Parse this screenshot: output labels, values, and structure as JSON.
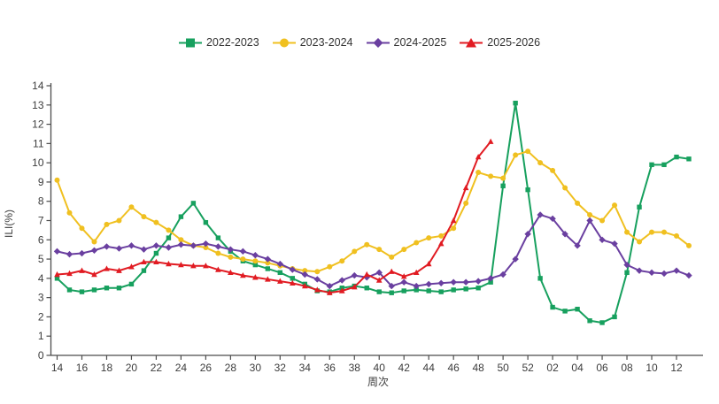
{
  "chart_data": {
    "type": "line",
    "title": "",
    "xlabel": "周次",
    "ylabel": "ILI(%)",
    "ylim": [
      0,
      14
    ],
    "grid": false,
    "legend_position": "top-center",
    "y_ticks": [
      0,
      1,
      2,
      3,
      4,
      5,
      6,
      7,
      8,
      9,
      10,
      11,
      12,
      13,
      14
    ],
    "x_tick_labels": [
      "14",
      "16",
      "18",
      "20",
      "22",
      "24",
      "26",
      "28",
      "30",
      "32",
      "34",
      "36",
      "38",
      "40",
      "42",
      "44",
      "46",
      "48",
      "50",
      "52",
      "02",
      "04",
      "06",
      "08",
      "10",
      "12"
    ],
    "categories": [
      "14",
      "15",
      "16",
      "17",
      "18",
      "19",
      "20",
      "21",
      "22",
      "23",
      "24",
      "25",
      "26",
      "27",
      "28",
      "29",
      "30",
      "31",
      "32",
      "33",
      "34",
      "35",
      "36",
      "37",
      "38",
      "39",
      "40",
      "41",
      "42",
      "43",
      "44",
      "45",
      "46",
      "47",
      "48",
      "49",
      "50",
      "51",
      "52",
      "01",
      "02",
      "03",
      "04",
      "05",
      "06",
      "07",
      "08",
      "09",
      "10",
      "11",
      "12",
      "13"
    ],
    "series": [
      {
        "name": "2022-2023",
        "color": "#17a05e",
        "marker": "square",
        "values": [
          4.0,
          3.4,
          3.3,
          3.4,
          3.5,
          3.5,
          3.7,
          4.4,
          5.3,
          6.1,
          7.2,
          7.9,
          6.9,
          6.1,
          5.4,
          4.9,
          4.7,
          4.5,
          4.3,
          4.0,
          3.7,
          3.35,
          3.3,
          3.5,
          3.6,
          3.5,
          3.3,
          3.25,
          3.35,
          3.4,
          3.35,
          3.3,
          3.4,
          3.45,
          3.5,
          3.8,
          8.8,
          13.1,
          8.6,
          4.0,
          2.5,
          2.3,
          2.4,
          1.8,
          1.7,
          2.0,
          4.3,
          7.7,
          9.9,
          9.9,
          10.3,
          10.2
        ]
      },
      {
        "name": "2023-2024",
        "color": "#f0c020",
        "marker": "circle",
        "values": [
          9.1,
          7.4,
          6.6,
          5.9,
          6.8,
          7.0,
          7.7,
          7.2,
          6.9,
          6.5,
          6.0,
          5.7,
          5.6,
          5.3,
          5.1,
          5.0,
          4.9,
          4.8,
          4.65,
          4.5,
          4.4,
          4.35,
          4.6,
          4.9,
          5.4,
          5.75,
          5.5,
          5.1,
          5.5,
          5.85,
          6.1,
          6.2,
          6.6,
          7.9,
          9.5,
          9.3,
          9.2,
          10.4,
          10.6,
          10.0,
          9.6,
          8.7,
          7.9,
          7.3,
          7.0,
          7.8,
          6.4,
          5.9,
          6.4,
          6.4,
          6.2,
          5.7
        ]
      },
      {
        "name": "2024-2025",
        "color": "#6a3fa0",
        "marker": "diamond",
        "values": [
          5.4,
          5.25,
          5.3,
          5.45,
          5.65,
          5.55,
          5.7,
          5.5,
          5.7,
          5.6,
          5.75,
          5.7,
          5.8,
          5.65,
          5.5,
          5.4,
          5.2,
          5.0,
          4.75,
          4.45,
          4.2,
          3.95,
          3.6,
          3.9,
          4.15,
          4.05,
          4.3,
          3.6,
          3.8,
          3.6,
          3.7,
          3.75,
          3.8,
          3.8,
          3.85,
          4.0,
          4.2,
          5.0,
          6.3,
          7.3,
          7.1,
          6.3,
          5.7,
          7.0,
          6.0,
          5.8,
          4.7,
          4.4,
          4.3,
          4.25,
          4.4,
          4.15
        ]
      },
      {
        "name": "2025-2026",
        "color": "#e11b22",
        "marker": "triangle",
        "values": [
          4.2,
          4.25,
          4.4,
          4.2,
          4.5,
          4.4,
          4.6,
          4.85,
          4.85,
          4.75,
          4.7,
          4.65,
          4.65,
          4.45,
          4.3,
          4.15,
          4.05,
          3.95,
          3.85,
          3.75,
          3.6,
          3.4,
          3.25,
          3.35,
          3.55,
          4.2,
          3.9,
          4.35,
          4.1,
          4.3,
          4.75,
          5.8,
          7.0,
          8.7,
          10.3,
          11.1,
          null,
          null,
          null,
          null,
          null,
          null,
          null,
          null,
          null,
          null,
          null,
          null,
          null,
          null,
          null,
          null
        ]
      }
    ]
  }
}
